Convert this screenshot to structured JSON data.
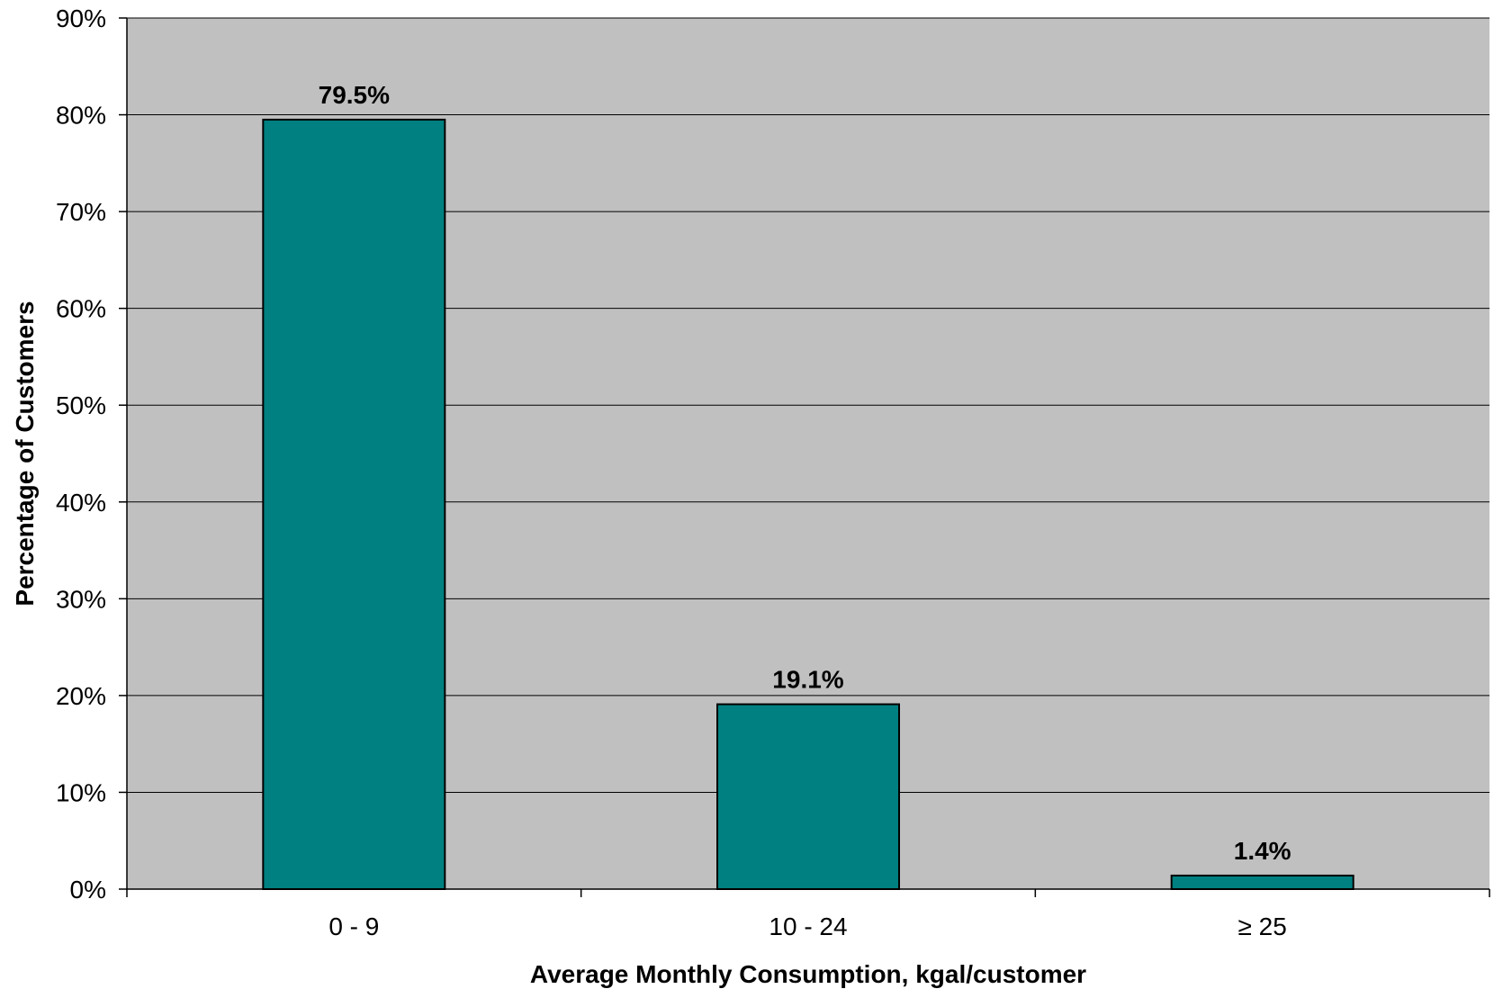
{
  "chart_data": {
    "type": "bar",
    "categories": [
      "0 - 9",
      "10 - 24",
      "≥ 25"
    ],
    "values": [
      79.5,
      19.1,
      1.4
    ],
    "data_labels": [
      "79.5%",
      "19.1%",
      "1.4%"
    ],
    "title": "",
    "xlabel": "Average Monthly Consumption, kgal/customer",
    "ylabel": "Percentage of Customers",
    "ylim": [
      0,
      90
    ],
    "yticks": [
      0,
      10,
      20,
      30,
      40,
      50,
      60,
      70,
      80,
      90
    ],
    "ytick_labels": [
      "0%",
      "10%",
      "20%",
      "30%",
      "40%",
      "50%",
      "60%",
      "70%",
      "80%",
      "90%"
    ],
    "grid": true,
    "legend": "none",
    "colors": {
      "bar_fill": "#008080",
      "bar_stroke": "#000000",
      "plot_background": "#c0c0c0",
      "gridline": "#000000"
    }
  }
}
